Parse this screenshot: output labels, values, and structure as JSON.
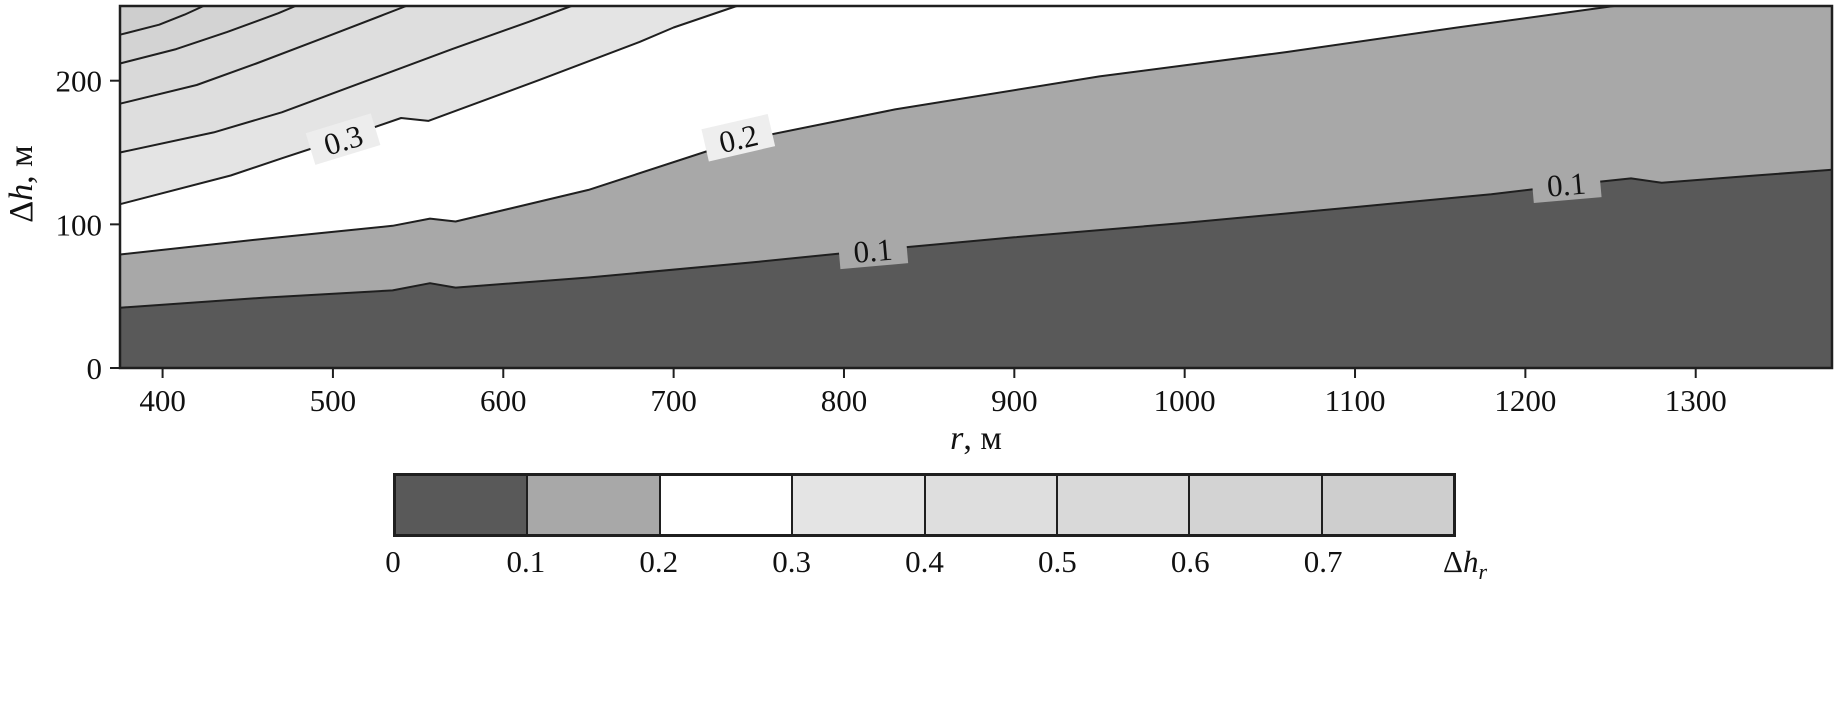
{
  "chart_data": {
    "type": "contour",
    "title": "",
    "xlabel": {
      "var": "r",
      "rest": ", м"
    },
    "ylabel": {
      "prefix": "Δ",
      "var": "h",
      "rest": ", м"
    },
    "xlim": [
      375,
      1380
    ],
    "ylim": [
      0,
      252
    ],
    "x_ticks": [
      400,
      500,
      600,
      700,
      800,
      900,
      1000,
      1100,
      1200,
      1300
    ],
    "y_ticks": [
      0,
      100,
      200
    ],
    "grid": false,
    "legend_position": "bottom",
    "base_color": "#595959",
    "line_color": "#1f1f1f",
    "contours": [
      {
        "level": 0.1,
        "fill_above": "#a8a8a8",
        "points": [
          [
            375,
            42
          ],
          [
            460,
            49
          ],
          [
            535,
            54
          ],
          [
            557,
            59
          ],
          [
            572,
            56
          ],
          [
            650,
            63
          ],
          [
            750,
            74
          ],
          [
            817,
            82
          ],
          [
            900,
            91
          ],
          [
            1000,
            101
          ],
          [
            1100,
            112
          ],
          [
            1180,
            121
          ],
          [
            1230,
            128
          ],
          [
            1262,
            132
          ],
          [
            1280,
            129
          ],
          [
            1335,
            134
          ],
          [
            1380,
            138
          ]
        ]
      },
      {
        "level": 0.2,
        "fill_above": "#ffffff",
        "points": [
          [
            375,
            79
          ],
          [
            460,
            90
          ],
          [
            535,
            99
          ],
          [
            557,
            104
          ],
          [
            572,
            102
          ],
          [
            650,
            124
          ],
          [
            738,
            158
          ],
          [
            830,
            180
          ],
          [
            950,
            203
          ],
          [
            1060,
            220
          ],
          [
            1160,
            237
          ],
          [
            1252,
            252
          ]
        ]
      },
      {
        "level": 0.3,
        "fill_above": "#e4e4e4",
        "points": [
          [
            375,
            114
          ],
          [
            440,
            134
          ],
          [
            470,
            146
          ],
          [
            501,
            158
          ],
          [
            540,
            174
          ],
          [
            556,
            172
          ],
          [
            620,
            200
          ],
          [
            680,
            227
          ],
          [
            700,
            237
          ],
          [
            737,
            252
          ]
        ]
      },
      {
        "level": 0.4,
        "fill_above": "#dedede",
        "points": [
          [
            375,
            150
          ],
          [
            430,
            164
          ],
          [
            470,
            178
          ],
          [
            520,
            200
          ],
          [
            570,
            222
          ],
          [
            615,
            241
          ],
          [
            640,
            252
          ]
        ]
      },
      {
        "level": 0.5,
        "fill_above": "#d9d9d9",
        "points": [
          [
            375,
            184
          ],
          [
            420,
            197
          ],
          [
            455,
            212
          ],
          [
            495,
            230
          ],
          [
            530,
            246
          ],
          [
            543,
            252
          ]
        ]
      },
      {
        "level": 0.6,
        "fill_above": "#d3d3d3",
        "points": [
          [
            375,
            212
          ],
          [
            408,
            222
          ],
          [
            438,
            234
          ],
          [
            468,
            247
          ],
          [
            478,
            252
          ]
        ]
      },
      {
        "level": 0.7,
        "fill_above": "#cecece",
        "points": [
          [
            375,
            232
          ],
          [
            398,
            239
          ],
          [
            413,
            246
          ],
          [
            424,
            252
          ]
        ]
      }
    ],
    "contour_labels": [
      {
        "text": "0.1",
        "r": 817,
        "h": 82,
        "angle": -5,
        "bg": "#a8a8a8"
      },
      {
        "text": "0.1",
        "r": 1224,
        "h": 128,
        "angle": -5,
        "bg": "#a8a8a8"
      },
      {
        "text": "0.2",
        "r": 738,
        "h": 160,
        "angle": -13,
        "bg": "#eeeeee"
      },
      {
        "text": "0.3",
        "r": 506,
        "h": 159,
        "angle": -17,
        "bg": "#ededed"
      }
    ],
    "colorbar": {
      "segments": [
        {
          "from": 0,
          "to": 0.1,
          "color": "#595959"
        },
        {
          "from": 0.1,
          "to": 0.2,
          "color": "#a8a8a8"
        },
        {
          "from": 0.2,
          "to": 0.3,
          "color": "#ffffff"
        },
        {
          "from": 0.3,
          "to": 0.4,
          "color": "#e4e4e4"
        },
        {
          "from": 0.4,
          "to": 0.5,
          "color": "#dedede"
        },
        {
          "from": 0.5,
          "to": 0.6,
          "color": "#d9d9d9"
        },
        {
          "from": 0.6,
          "to": 0.7,
          "color": "#d3d3d3"
        },
        {
          "from": 0.7,
          "to": 0.8,
          "color": "#cecece"
        }
      ],
      "tick_labels": [
        "0",
        "0.1",
        "0.2",
        "0.3",
        "0.4",
        "0.5",
        "0.6",
        "0.7"
      ],
      "title": {
        "prefix": "Δ",
        "var": "h",
        "sub": "r"
      }
    }
  }
}
